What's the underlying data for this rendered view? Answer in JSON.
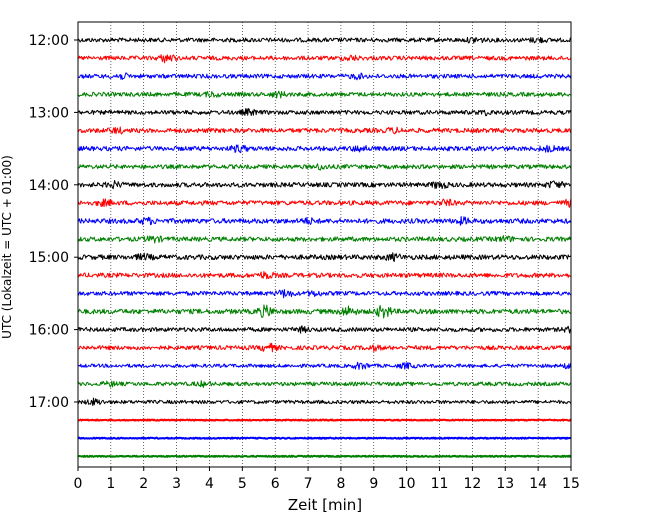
{
  "chart_data": {
    "type": "line",
    "subtype": "helicorder",
    "xlabel": "Zeit  [min]",
    "ylabel": "UTC (Lokalzeit = UTC + 01:00)",
    "xlim": [
      0,
      15
    ],
    "x_ticks": [
      "0",
      "1",
      "2",
      "3",
      "4",
      "5",
      "6",
      "7",
      "8",
      "9",
      "10",
      "11",
      "12",
      "13",
      "14",
      "15"
    ],
    "y_ticks": [
      "12:00",
      "13:00",
      "14:00",
      "15:00",
      "16:00",
      "17:00"
    ],
    "y_tick_rows": [
      0,
      4,
      8,
      12,
      16,
      20
    ],
    "grid": "vertical dotted lines at each minute",
    "row_interval_minutes": 15,
    "trace_colors": [
      "#000000",
      "#ff0000",
      "#0000ff",
      "#008000"
    ],
    "traces": [
      {
        "start": "12:00",
        "color": "#000000",
        "amplitude": 0.45,
        "events": [
          {
            "t": 12.1,
            "amp": 1.0
          },
          {
            "t": 14.0,
            "amp": 0.8
          }
        ]
      },
      {
        "start": "12:15",
        "color": "#ff0000",
        "amplitude": 0.45,
        "events": [
          {
            "t": 2.7,
            "amp": 1.6
          },
          {
            "t": 8.3,
            "amp": 0.8
          }
        ]
      },
      {
        "start": "12:30",
        "color": "#0000ff",
        "amplitude": 0.45,
        "events": [
          {
            "t": 1.3,
            "amp": 1.0
          },
          {
            "t": 8.5,
            "amp": 0.8
          }
        ]
      },
      {
        "start": "12:45",
        "color": "#008000",
        "amplitude": 0.45,
        "events": [
          {
            "t": 6.1,
            "amp": 1.0
          },
          {
            "t": 4.1,
            "amp": 0.8
          }
        ]
      },
      {
        "start": "13:00",
        "color": "#000000",
        "amplitude": 0.45,
        "events": [
          {
            "t": 5.2,
            "amp": 1.0
          },
          {
            "t": 12.4,
            "amp": 0.7
          }
        ]
      },
      {
        "start": "13:15",
        "color": "#ff0000",
        "amplitude": 0.5,
        "events": [
          {
            "t": 1.2,
            "amp": 0.9
          },
          {
            "t": 9.6,
            "amp": 0.8
          }
        ]
      },
      {
        "start": "13:30",
        "color": "#0000ff",
        "amplitude": 0.5,
        "events": [
          {
            "t": 4.9,
            "amp": 1.2
          },
          {
            "t": 8.6,
            "amp": 1.0
          },
          {
            "t": 14.3,
            "amp": 0.9
          }
        ]
      },
      {
        "start": "13:45",
        "color": "#008000",
        "amplitude": 0.45,
        "events": [
          {
            "t": 7.4,
            "amp": 0.9
          }
        ]
      },
      {
        "start": "14:00",
        "color": "#000000",
        "amplitude": 0.5,
        "events": [
          {
            "t": 1.1,
            "amp": 1.0
          },
          {
            "t": 11.0,
            "amp": 1.3
          },
          {
            "t": 14.5,
            "amp": 1.2
          }
        ]
      },
      {
        "start": "14:15",
        "color": "#ff0000",
        "amplitude": 0.5,
        "events": [
          {
            "t": 0.8,
            "amp": 1.0
          },
          {
            "t": 11.2,
            "amp": 1.0
          },
          {
            "t": 15.0,
            "amp": 1.2
          }
        ]
      },
      {
        "start": "14:30",
        "color": "#0000ff",
        "amplitude": 0.55,
        "events": [
          {
            "t": 2.1,
            "amp": 1.0
          },
          {
            "t": 7.0,
            "amp": 0.9
          },
          {
            "t": 11.7,
            "amp": 1.1
          }
        ]
      },
      {
        "start": "14:45",
        "color": "#008000",
        "amplitude": 0.5,
        "events": [
          {
            "t": 2.3,
            "amp": 1.0
          },
          {
            "t": 13.0,
            "amp": 0.8
          }
        ]
      },
      {
        "start": "15:00",
        "color": "#000000",
        "amplitude": 0.55,
        "events": [
          {
            "t": 2.0,
            "amp": 0.9
          },
          {
            "t": 9.6,
            "amp": 1.1
          }
        ]
      },
      {
        "start": "15:15",
        "color": "#ff0000",
        "amplitude": 0.5,
        "events": [
          {
            "t": 5.7,
            "amp": 1.2
          }
        ]
      },
      {
        "start": "15:30",
        "color": "#0000ff",
        "amplitude": 0.45,
        "events": [
          {
            "t": 6.3,
            "amp": 1.4
          },
          {
            "t": 7.2,
            "amp": 0.8
          }
        ]
      },
      {
        "start": "15:45",
        "color": "#008000",
        "amplitude": 0.55,
        "events": [
          {
            "t": 5.7,
            "amp": 2.2
          },
          {
            "t": 8.2,
            "amp": 1.8
          },
          {
            "t": 9.3,
            "amp": 2.4
          }
        ]
      },
      {
        "start": "16:00",
        "color": "#000000",
        "amplitude": 0.45,
        "events": [
          {
            "t": 6.8,
            "amp": 0.8
          },
          {
            "t": 15.0,
            "amp": 0.9
          }
        ]
      },
      {
        "start": "16:15",
        "color": "#ff0000",
        "amplitude": 0.45,
        "events": [
          {
            "t": 5.8,
            "amp": 1.5
          },
          {
            "t": 9.0,
            "amp": 0.8
          }
        ]
      },
      {
        "start": "16:30",
        "color": "#0000ff",
        "amplitude": 0.35,
        "events": [
          {
            "t": 8.6,
            "amp": 1.3
          },
          {
            "t": 10.0,
            "amp": 1.0
          },
          {
            "t": 15.0,
            "amp": 1.2
          }
        ]
      },
      {
        "start": "16:45",
        "color": "#008000",
        "amplitude": 0.4,
        "events": [
          {
            "t": 1.0,
            "amp": 0.8
          },
          {
            "t": 3.8,
            "amp": 0.8
          }
        ]
      },
      {
        "start": "17:00",
        "color": "#000000",
        "amplitude": 0.35,
        "end": 15.0,
        "events": [
          {
            "t": 0.5,
            "amp": 1.2
          }
        ]
      },
      {
        "start": "17:15",
        "color": "#ff0000",
        "amplitude": 0.0,
        "events": []
      },
      {
        "start": "17:30",
        "color": "#0000ff",
        "amplitude": 0.0,
        "events": []
      },
      {
        "start": "17:45",
        "color": "#008000",
        "amplitude": 0.0,
        "events": []
      }
    ]
  }
}
